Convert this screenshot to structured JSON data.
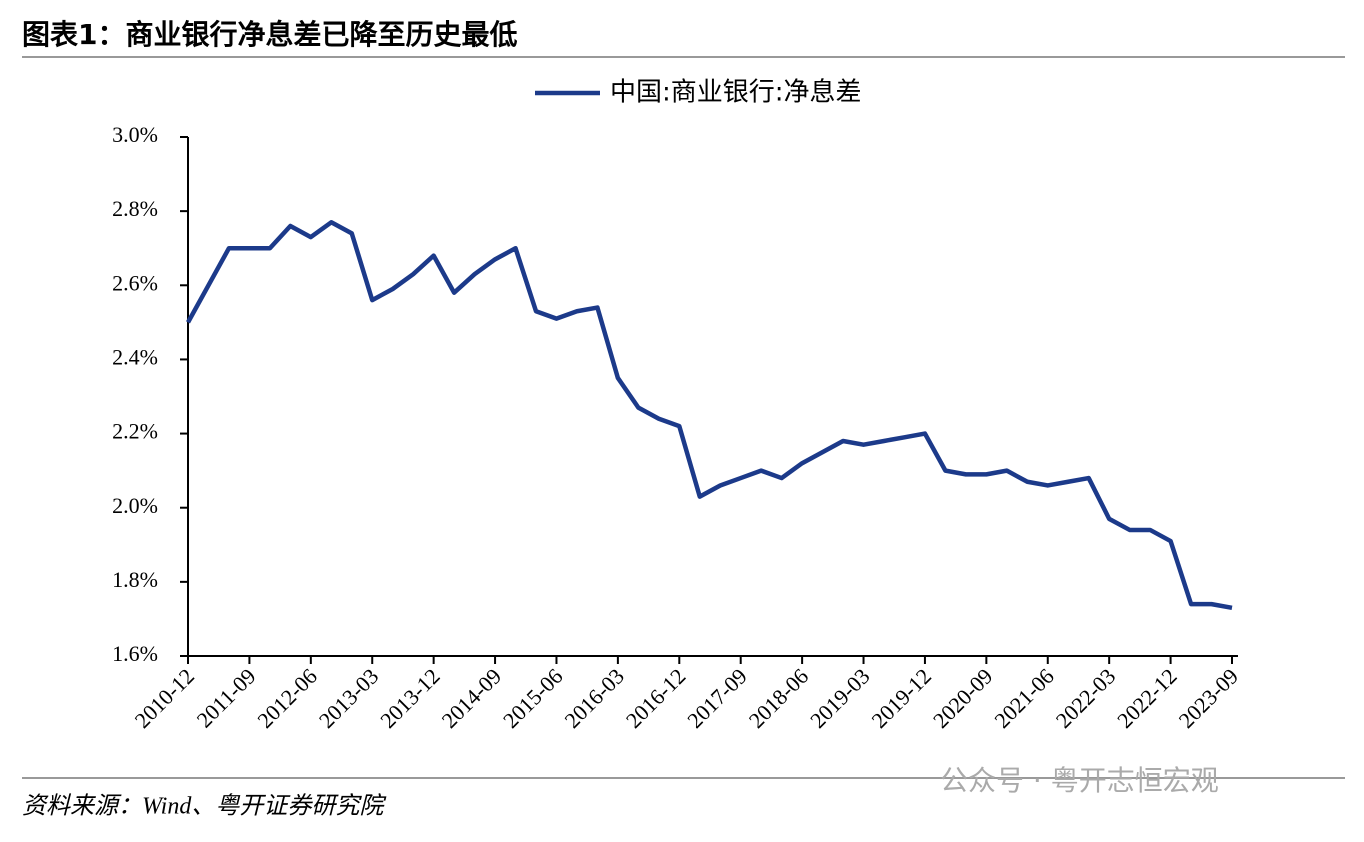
{
  "chart_data": {
    "type": "line",
    "title": "图表1：商业银行净息差已降至历史最低",
    "source": "资料来源：Wind、粤开证券研究院",
    "watermark": "公众号 · 粤开志恒宏观",
    "categories": [
      "2010-12",
      null,
      null,
      "2011-09",
      null,
      null,
      "2012-06",
      null,
      null,
      "2013-03",
      null,
      null,
      "2013-12",
      null,
      null,
      "2014-09",
      null,
      null,
      "2015-06",
      null,
      null,
      "2016-03",
      null,
      null,
      "2016-12",
      null,
      null,
      "2017-09",
      null,
      null,
      "2018-06",
      null,
      null,
      "2019-03",
      null,
      null,
      "2019-12",
      null,
      null,
      "2020-09",
      null,
      null,
      "2021-06",
      null,
      null,
      "2022-03",
      null,
      null,
      "2022-12",
      null,
      null,
      "2023-09"
    ],
    "series": [
      {
        "name": "中国:商业银行:净息差",
        "color": "#1c3a8a",
        "values": [
          2.5,
          2.6,
          2.7,
          2.7,
          2.7,
          2.76,
          2.73,
          2.77,
          2.74,
          2.56,
          2.59,
          2.63,
          2.68,
          2.58,
          2.63,
          2.67,
          2.7,
          2.53,
          2.51,
          2.53,
          2.54,
          2.35,
          2.27,
          2.24,
          2.22,
          2.03,
          2.06,
          2.08,
          2.1,
          2.08,
          2.12,
          2.15,
          2.18,
          2.17,
          2.18,
          2.19,
          2.2,
          2.1,
          2.09,
          2.09,
          2.1,
          2.07,
          2.06,
          2.07,
          2.08,
          1.97,
          1.94,
          1.94,
          1.91,
          1.74,
          1.74,
          1.73
        ]
      }
    ],
    "ylim": [
      1.6,
      3.0
    ],
    "yticks": [
      {
        "value": 1.6,
        "label": "1.6%"
      },
      {
        "value": 1.8,
        "label": "1.8%"
      },
      {
        "value": 2.0,
        "label": "2.0%"
      },
      {
        "value": 2.2,
        "label": "2.2%"
      },
      {
        "value": 2.4,
        "label": "2.4%"
      },
      {
        "value": 2.6,
        "label": "2.6%"
      },
      {
        "value": 2.8,
        "label": "2.8%"
      },
      {
        "value": 3.0,
        "label": "3.0%"
      }
    ],
    "legend": "top",
    "grid": false
  }
}
